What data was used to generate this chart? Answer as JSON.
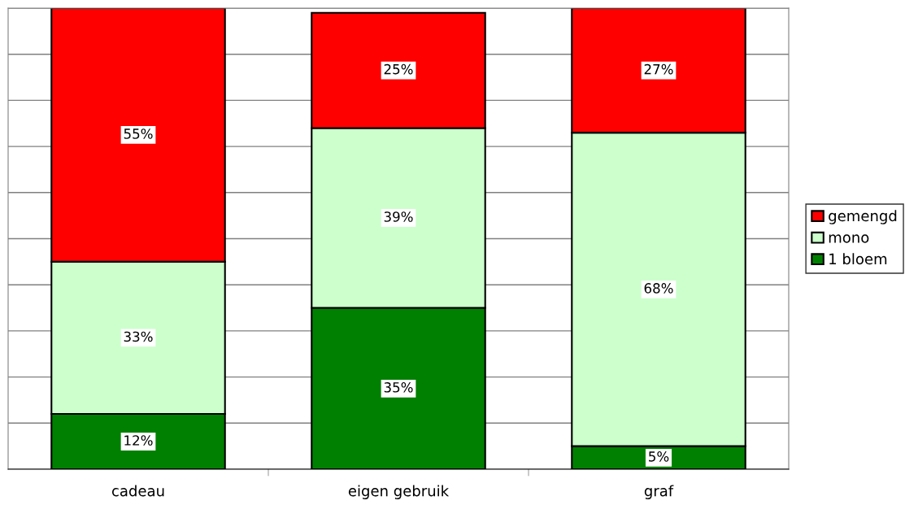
{
  "chart_data": {
    "type": "bar",
    "stacked": true,
    "categories": [
      "cadeau",
      "eigen gebruik",
      "graf"
    ],
    "series": [
      {
        "name": "1 bloem",
        "color": "#008000",
        "values": [
          12,
          35,
          5
        ],
        "value_labels": [
          "12%",
          "35%",
          "5%"
        ]
      },
      {
        "name": "mono",
        "color": "#ccffcc",
        "values": [
          33,
          39,
          68
        ],
        "value_labels": [
          "33%",
          "39%",
          "68%"
        ]
      },
      {
        "name": "gemengd",
        "color": "#ff0000",
        "values": [
          55,
          25,
          27
        ],
        "value_labels": [
          "55%",
          "25%",
          "27%"
        ]
      }
    ],
    "grid": "y",
    "legend": "right",
    "tick_labels": "x"
  }
}
